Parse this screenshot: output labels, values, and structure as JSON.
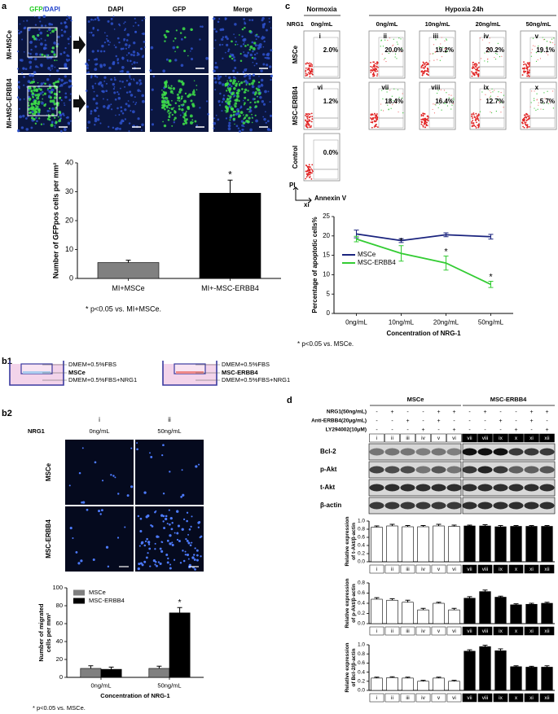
{
  "figure": {
    "a": {
      "label": "a",
      "gfp": "GFP",
      "dapi": "/DAPI",
      "headers": [
        "DAPI",
        "GFP",
        "Merge"
      ],
      "rows": [
        "MI+MSCe",
        "MI+MSC-ERBB4"
      ]
    },
    "b1": {
      "label": "b1",
      "left": [
        "DMEM+0.5%FBS",
        "MSCe",
        "DMEM+0.5%FBS+NRG1"
      ],
      "right": [
        "DMEM+0.5%FBS",
        "MSC-ERBB4",
        "DMEM+0.5%FBS+NRG1"
      ]
    },
    "b2": {
      "label": "b2",
      "columns": [
        "i",
        "ii"
      ],
      "row_label": "NRG1",
      "conc": [
        "0ng/mL",
        "50ng/mL"
      ],
      "rows": [
        "MSCe",
        "MSC-ERBB4"
      ]
    },
    "c": {
      "label": "c",
      "conditions": [
        "Normoxia",
        "Hypoxia 24h"
      ],
      "row_label": "NRG1",
      "conc": [
        "0ng/mL",
        "0ng/mL",
        "10ng/mL",
        "20ng/mL",
        "50ng/mL"
      ],
      "rows": [
        {
          "name": "MSCe",
          "cells": [
            {
              "id": "i",
              "percent": "2.0%"
            },
            {
              "id": "ii",
              "percent": "20.0%"
            },
            {
              "id": "iii",
              "percent": "19.2%"
            },
            {
              "id": "iv",
              "percent": "20.2%"
            },
            {
              "id": "v",
              "percent": "19.1%"
            }
          ]
        },
        {
          "name": "MSC-ERBB4",
          "cells": [
            {
              "id": "vi",
              "percent": "1.2%"
            },
            {
              "id": "vii",
              "percent": "18.4%"
            },
            {
              "id": "viii",
              "percent": "16.4%"
            },
            {
              "id": "ix",
              "percent": "12.7%"
            },
            {
              "id": "x",
              "percent": "5.7%"
            }
          ]
        },
        {
          "name": "Control",
          "cells": [
            {
              "percent": "0.0%"
            }
          ]
        }
      ],
      "y_axis": "PI",
      "x_axis": "Annexin V"
    },
    "d": {
      "label": "d",
      "groups": [
        "MSCe",
        "MSC-ERBB4"
      ],
      "treatments": [
        {
          "name": "NRG1(50ng/mL)",
          "signs": [
            "-",
            "+",
            "-",
            "-",
            "+",
            "+",
            "-",
            "+",
            "-",
            "-",
            "+",
            "+"
          ]
        },
        {
          "name": "Anti-ERBB4(20μg/mL)",
          "signs": [
            "-",
            "-",
            "+",
            "-",
            "+",
            "-",
            "-",
            "-",
            "+",
            "-",
            "+",
            "-"
          ]
        },
        {
          "name": "LY294002(10μM)",
          "signs": [
            "-",
            "-",
            "-",
            "+",
            "-",
            "+",
            "-",
            "-",
            "-",
            "+",
            "-",
            "+"
          ]
        }
      ],
      "lanes": [
        "i",
        "ii",
        "iii",
        "iv",
        "v",
        "vi",
        "vii",
        "viii",
        "ix",
        "x",
        "xi",
        "xii"
      ],
      "blots": [
        "Bcl-2",
        "p-Akt",
        "t-Akt",
        "β-actin"
      ]
    }
  },
  "chart_data": [
    {
      "type": "bar",
      "ylabel": "Number of GFPpos cells per mm²",
      "categories": [
        "MI+MSCe",
        "MI+-MSC-ERBB4"
      ],
      "values": [
        5.5,
        29.5
      ],
      "errors": [
        0.8,
        4.5
      ],
      "significance": [
        null,
        "*"
      ],
      "colors": [
        "#808080",
        "#000000"
      ],
      "ylim": [
        0,
        40
      ],
      "yticks": [
        0,
        10,
        20,
        30,
        40
      ],
      "note": "* p<0.05 vs. MI+MSCe."
    },
    {
      "type": "line",
      "title": "xi",
      "xlabel": "Concentration of NRG-1",
      "ylabel": "Percentage of apoptotic cells%",
      "categories": [
        "0ng/mL",
        "10ng/mL",
        "20ng/mL",
        "50ng/mL"
      ],
      "series": [
        {
          "name": "MSCe",
          "color": "#1a237e",
          "values": [
            20.5,
            18.8,
            20.3,
            19.8
          ],
          "errors": [
            1,
            0.5,
            0.5,
            0.6
          ]
        },
        {
          "name": "MSC-ERBB4",
          "color": "#33cc33",
          "values": [
            19.2,
            15.5,
            13,
            7.5
          ],
          "errors": [
            0.7,
            2,
            1.8,
            0.8
          ],
          "significance": [
            null,
            "*",
            "*",
            "*"
          ]
        }
      ],
      "ylim": [
        0,
        25
      ],
      "yticks": [
        0,
        5,
        10,
        15,
        20,
        25
      ],
      "legend": "left",
      "note": "* p<0.05 vs. MSCe."
    },
    {
      "type": "bar",
      "xlabel": "Concentration of NRG-1",
      "ylabel": [
        "Number of migrated",
        "cells per mm²"
      ],
      "categories": [
        "0ng/mL",
        "50ng/mL"
      ],
      "series": [
        {
          "name": "MSCe",
          "color": "#808080",
          "values": [
            10,
            10
          ],
          "errors": [
            3,
            2.5
          ]
        },
        {
          "name": "MSC-ERBB4",
          "color": "#000000",
          "values": [
            9,
            72
          ],
          "errors": [
            2.5,
            6
          ],
          "significance": [
            null,
            "*"
          ]
        }
      ],
      "ylim": [
        0,
        100
      ],
      "yticks": [
        0,
        20,
        40,
        60,
        80,
        100
      ],
      "legend": "upper left",
      "note": "* p<0.05 vs. MSCe."
    },
    {
      "type": "bar",
      "ylabel": [
        "Relative expression",
        "of t-Akt/β-actin"
      ],
      "category_style": "boxed",
      "categories": [
        "i",
        "ii",
        "iii",
        "iv",
        "v",
        "vi",
        "vii",
        "viii",
        "ix",
        "x",
        "xi",
        "xii"
      ],
      "values": [
        0.85,
        0.88,
        0.86,
        0.86,
        0.88,
        0.87,
        0.88,
        0.88,
        0.86,
        0.87,
        0.87,
        0.87
      ],
      "errors": [
        0.03,
        0.04,
        0.03,
        0.03,
        0.04,
        0.03,
        0.02,
        0.03,
        0.03,
        0.02,
        0.02,
        0.02
      ],
      "colors": [
        "#ffffff",
        "#ffffff",
        "#ffffff",
        "#ffffff",
        "#ffffff",
        "#ffffff",
        "#000000",
        "#000000",
        "#000000",
        "#000000",
        "#000000",
        "#000000"
      ],
      "ylim": [
        0,
        1
      ],
      "yticks": [
        {
          "value": 0,
          "label": "0.0"
        },
        0.2,
        0.4,
        0.6,
        0.8,
        {
          "value": 1,
          "label": "1.0"
        }
      ]
    },
    {
      "type": "bar",
      "ylabel": [
        "Relative expression",
        "of p-Akt/β-actin"
      ],
      "category_style": "boxed",
      "categories": [
        "i",
        "ii",
        "iii",
        "iv",
        "v",
        "vi",
        "vii",
        "viii",
        "ix",
        "x",
        "xi",
        "xii"
      ],
      "values": [
        0.48,
        0.46,
        0.42,
        0.27,
        0.4,
        0.27,
        0.5,
        0.63,
        0.52,
        0.37,
        0.38,
        0.4
      ],
      "errors": [
        0.03,
        0.03,
        0.04,
        0.03,
        0.02,
        0.03,
        0.03,
        0.03,
        0.02,
        0.02,
        0.02,
        0.02
      ],
      "colors": [
        "#ffffff",
        "#ffffff",
        "#ffffff",
        "#ffffff",
        "#ffffff",
        "#ffffff",
        "#000000",
        "#000000",
        "#000000",
        "#000000",
        "#000000",
        "#000000"
      ],
      "ylim": [
        0,
        0.8
      ],
      "yticks": [
        {
          "value": 0,
          "label": "0.0"
        },
        0.2,
        0.4,
        0.6,
        0.8
      ]
    },
    {
      "type": "bar",
      "ylabel": [
        "Relative expression",
        "of Bcl-2/β-actin"
      ],
      "category_style": "boxed",
      "categories": [
        "i",
        "ii",
        "iii",
        "iv",
        "v",
        "vi",
        "vii",
        "viii",
        "ix",
        "x",
        "xi",
        "xii"
      ],
      "values": [
        0.27,
        0.28,
        0.27,
        0.2,
        0.27,
        0.2,
        0.86,
        0.96,
        0.87,
        0.52,
        0.51,
        0.51
      ],
      "errors": [
        0.02,
        0.02,
        0.02,
        0.02,
        0.02,
        0.02,
        0.03,
        0.03,
        0.04,
        0.02,
        0.02,
        0.03
      ],
      "colors": [
        "#ffffff",
        "#ffffff",
        "#ffffff",
        "#ffffff",
        "#ffffff",
        "#ffffff",
        "#000000",
        "#000000",
        "#000000",
        "#000000",
        "#000000",
        "#000000"
      ],
      "ylim": [
        0,
        1
      ],
      "yticks": [
        {
          "value": 0,
          "label": "0.0"
        },
        0.2,
        0.4,
        0.6,
        0.8,
        {
          "value": 1,
          "label": "1.0"
        }
      ]
    }
  ]
}
